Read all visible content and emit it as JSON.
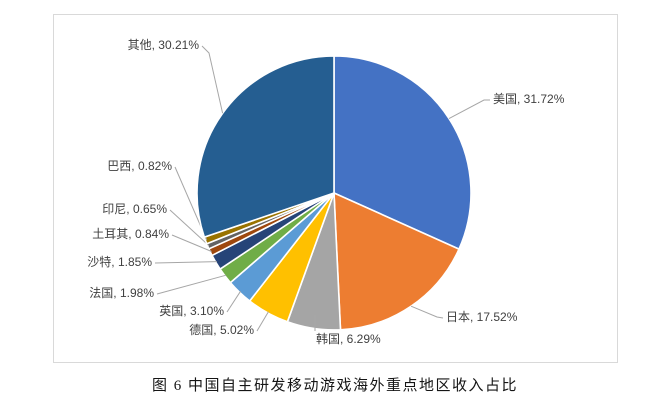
{
  "figure_caption": "图 6 中国自主研发移动游戏海外重点地区收入占比",
  "chart_data": {
    "type": "pie",
    "title": "图 6 中国自主研发移动游戏海外重点地区收入占比",
    "unit": "%",
    "direction": "clockwise",
    "start_angle_deg": 0,
    "label_format": "{label}, {value}%",
    "leader_line_color": "#a6a6a6",
    "label_text_color": "#404040",
    "chart_border_color": "#d9d9d9",
    "slices": [
      {
        "key": "usa",
        "label": "美国",
        "value": 31.72,
        "color": "#4472c4"
      },
      {
        "key": "japan",
        "label": "日本",
        "value": 17.52,
        "color": "#ed7d31"
      },
      {
        "key": "korea",
        "label": "韩国",
        "value": 6.29,
        "color": "#a5a5a5"
      },
      {
        "key": "germany",
        "label": "德国",
        "value": 5.02,
        "color": "#ffc000"
      },
      {
        "key": "uk",
        "label": "英国",
        "value": 3.1,
        "color": "#5b9bd5"
      },
      {
        "key": "france",
        "label": "法国",
        "value": 1.98,
        "color": "#70ad47"
      },
      {
        "key": "saudi",
        "label": "沙特",
        "value": 1.85,
        "color": "#264478"
      },
      {
        "key": "turkey",
        "label": "土耳其",
        "value": 0.84,
        "color": "#9e480e"
      },
      {
        "key": "indonesia",
        "label": "印尼",
        "value": 0.65,
        "color": "#636363"
      },
      {
        "key": "brazil",
        "label": "巴西",
        "value": 0.82,
        "color": "#997300"
      },
      {
        "key": "others",
        "label": "其他",
        "value": 30.21,
        "color": "#255e91"
      }
    ]
  }
}
